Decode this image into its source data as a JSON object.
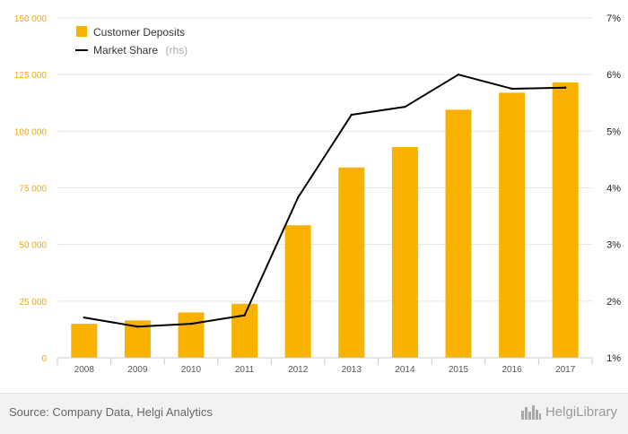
{
  "chart_data": {
    "type": "bar",
    "categories": [
      "2008",
      "2009",
      "2010",
      "2011",
      "2012",
      "2013",
      "2014",
      "2015",
      "2016",
      "2017"
    ],
    "series": [
      {
        "name": "Customer Deposits",
        "type": "bar",
        "axis": "left",
        "color": "#f9b200",
        "values": [
          15000,
          16500,
          20000,
          23800,
          58500,
          84000,
          93000,
          109500,
          117000,
          121500
        ]
      },
      {
        "name": "Market Share",
        "name_suffix": "(rhs)",
        "type": "line",
        "axis": "right",
        "color": "#000000",
        "values": [
          1.71,
          1.55,
          1.6,
          1.75,
          3.83,
          5.29,
          5.43,
          6.0,
          5.75,
          5.77
        ]
      }
    ],
    "left_axis": {
      "min": 0,
      "max": 150000,
      "ticks": [
        0,
        25000,
        50000,
        75000,
        100000,
        125000,
        150000
      ],
      "tick_labels": [
        "0",
        "25 000",
        "50 000",
        "75 000",
        "100 000",
        "125 000",
        "150 000"
      ]
    },
    "right_axis": {
      "min": 1,
      "max": 7,
      "ticks": [
        1,
        2,
        3,
        4,
        5,
        6,
        7
      ],
      "tick_labels": [
        "1%",
        "2%",
        "3%",
        "4%",
        "5%",
        "6%",
        "7%"
      ]
    },
    "grid": true,
    "legend": "top-left",
    "title": "",
    "xlabel": "",
    "ylabel": ""
  },
  "footer": {
    "source": "Source: Company Data, Helgi Analytics",
    "logo_text": "HelgiLibrary",
    "logo_icon": "city-skyline-icon"
  }
}
